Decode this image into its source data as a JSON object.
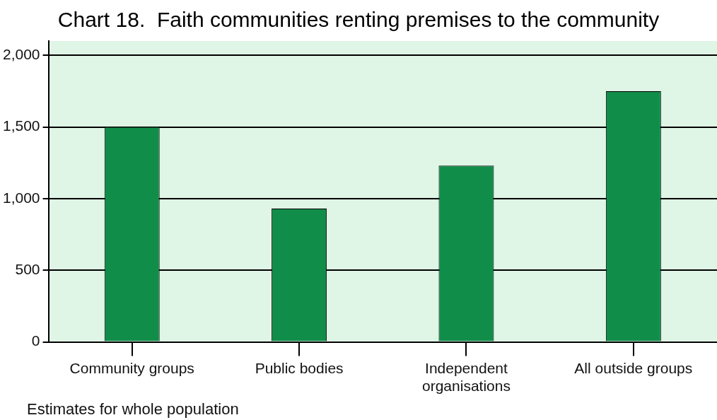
{
  "chart_data": {
    "type": "bar",
    "title": "Chart 18.  Faith communities renting premises to the community",
    "categories": [
      "Community groups",
      "Public bodies",
      "Independent organisations",
      "All outside groups"
    ],
    "values": [
      1500,
      930,
      1230,
      1750
    ],
    "color": "#118d4a",
    "ylim": [
      0,
      2100
    ],
    "yticks": [
      {
        "value": 0,
        "label": "0"
      },
      {
        "value": 500,
        "label": "500"
      },
      {
        "value": 1000,
        "label": "1,000"
      },
      {
        "value": 1500,
        "label": "1,500"
      },
      {
        "value": 2000,
        "label": "2,000"
      }
    ],
    "grid": "y",
    "legend": false,
    "annotations": [
      "Estimates for whole population"
    ]
  }
}
